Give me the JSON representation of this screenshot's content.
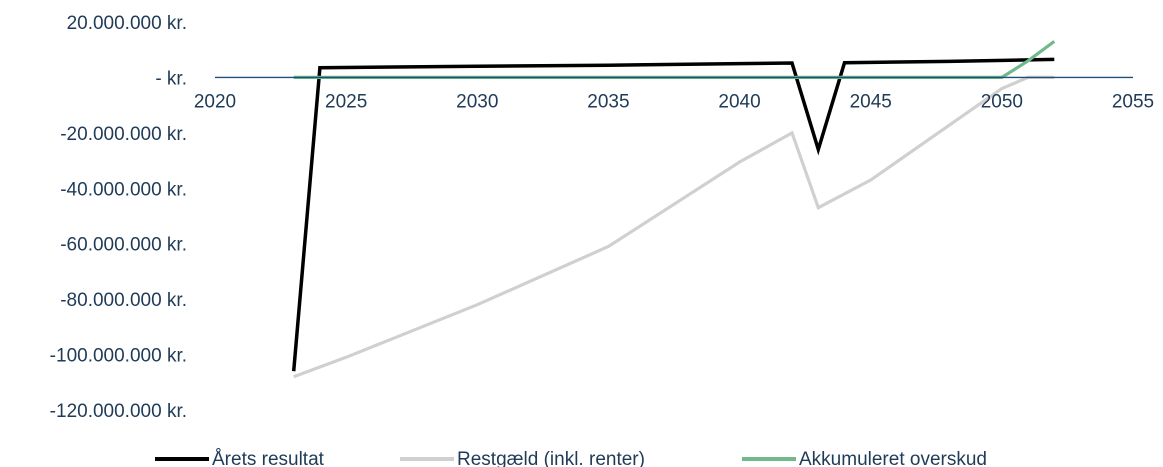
{
  "chart_data": {
    "type": "line",
    "title": "",
    "xlabel": "",
    "ylabel": "",
    "xlim": [
      2020,
      2055
    ],
    "ylim": [
      -120000000,
      20000000
    ],
    "x_ticks": [
      {
        "value": 2020,
        "label": "2020"
      },
      {
        "value": 2025,
        "label": "2025"
      },
      {
        "value": 2030,
        "label": "2030"
      },
      {
        "value": 2035,
        "label": "2035"
      },
      {
        "value": 2040,
        "label": "2040"
      },
      {
        "value": 2045,
        "label": "2045"
      },
      {
        "value": 2050,
        "label": "2050"
      },
      {
        "value": 2055,
        "label": "2055"
      }
    ],
    "y_ticks": [
      {
        "value": 20000000,
        "label": "20.000.000 kr."
      },
      {
        "value": 0,
        "label": "-   kr."
      },
      {
        "value": -20000000,
        "label": "-20.000.000 kr."
      },
      {
        "value": -40000000,
        "label": "-40.000.000 kr."
      },
      {
        "value": -60000000,
        "label": "-60.000.000 kr."
      },
      {
        "value": -80000000,
        "label": "-80.000.000 kr."
      },
      {
        "value": -100000000,
        "label": "-100.000.000 kr."
      },
      {
        "value": -120000000,
        "label": "-120.000.000 kr."
      }
    ],
    "grid": false,
    "legend": "bottom",
    "axis_color": "#1f4e79",
    "series": [
      {
        "name": "Årets resultat",
        "color": "#000000",
        "points": [
          [
            2023,
            -106000000
          ],
          [
            2024,
            3500000
          ],
          [
            2030,
            4000000
          ],
          [
            2035,
            4400000
          ],
          [
            2040,
            5000000
          ],
          [
            2042,
            5200000
          ],
          [
            2043,
            -26000000
          ],
          [
            2044,
            5300000
          ],
          [
            2048,
            5800000
          ],
          [
            2052,
            6500000
          ]
        ]
      },
      {
        "name": "Restgæld (inkl. renter)",
        "color": "#d0d0d0",
        "points": [
          [
            2023,
            -108000000
          ],
          [
            2025,
            -101000000
          ],
          [
            2030,
            -82000000
          ],
          [
            2035,
            -61000000
          ],
          [
            2040,
            -30500000
          ],
          [
            2042,
            -20000000
          ],
          [
            2043,
            -47000000
          ],
          [
            2045,
            -37000000
          ],
          [
            2050,
            -4000000
          ],
          [
            2051,
            0
          ],
          [
            2052,
            0
          ]
        ]
      },
      {
        "name": "Akkumuleret overskud",
        "color": "#6fb98a",
        "points": [
          [
            2023,
            0
          ],
          [
            2030,
            0
          ],
          [
            2040,
            0
          ],
          [
            2050,
            0
          ],
          [
            2051,
            6000000
          ],
          [
            2052,
            13000000
          ]
        ]
      }
    ]
  }
}
